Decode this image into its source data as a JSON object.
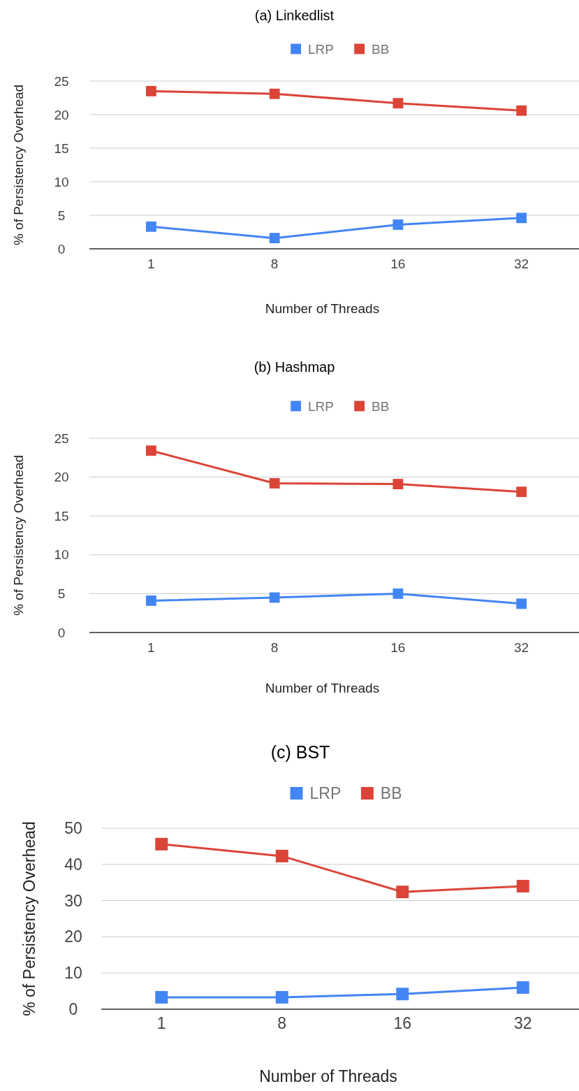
{
  "chart_data": [
    {
      "type": "line",
      "title": "(a) Linkedlist",
      "xlabel": "Number of Threads",
      "ylabel": "% of Persistency Overhead",
      "categories": [
        "1",
        "8",
        "16",
        "32"
      ],
      "ylim": [
        0,
        25
      ],
      "yticks": [
        0,
        5,
        10,
        15,
        20,
        25
      ],
      "grid": "y",
      "legend": "top",
      "marker": "square",
      "series": [
        {
          "name": "LRP",
          "color": "#4285f4",
          "values": [
            3.3,
            1.6,
            3.6,
            4.6
          ]
        },
        {
          "name": "BB",
          "color": "#db4437",
          "values": [
            23.5,
            23.1,
            21.7,
            20.6
          ]
        }
      ]
    },
    {
      "type": "line",
      "title": "(b) Hashmap",
      "xlabel": "Number of Threads",
      "ylabel": "% of Persistency Overhead",
      "categories": [
        "1",
        "8",
        "16",
        "32"
      ],
      "ylim": [
        0,
        25
      ],
      "yticks": [
        0,
        5,
        10,
        15,
        20,
        25
      ],
      "grid": "y",
      "legend": "top",
      "marker": "square",
      "series": [
        {
          "name": "LRP",
          "color": "#4285f4",
          "values": [
            4.1,
            4.5,
            5.0,
            3.7
          ]
        },
        {
          "name": "BB",
          "color": "#db4437",
          "values": [
            23.4,
            19.2,
            19.1,
            18.1
          ]
        }
      ]
    },
    {
      "type": "line",
      "title": "(c) BST",
      "xlabel": "Number of Threads",
      "ylabel": "% of Persistency Overhead",
      "categories": [
        "1",
        "8",
        "16",
        "32"
      ],
      "ylim": [
        0,
        50
      ],
      "yticks": [
        0,
        10,
        20,
        30,
        40,
        50
      ],
      "grid": "y",
      "legend": "top",
      "marker": "square",
      "series": [
        {
          "name": "LRP",
          "color": "#4285f4",
          "values": [
            3.3,
            3.3,
            4.2,
            6.0
          ]
        },
        {
          "name": "BB",
          "color": "#db4437",
          "values": [
            45.6,
            42.3,
            32.4,
            34.0
          ]
        }
      ]
    }
  ]
}
